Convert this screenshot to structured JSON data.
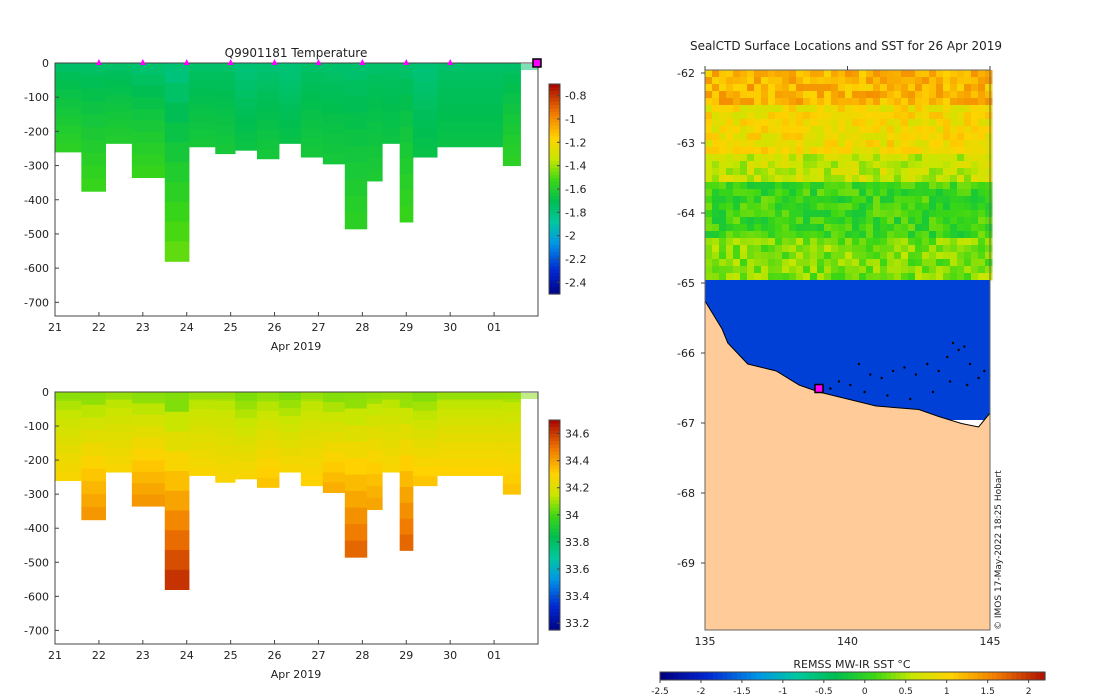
{
  "chart_data": [
    {
      "type": "heatmap",
      "title": "Q9901181  Temperature",
      "xlabel": "Apr 2019",
      "x_ticks": [
        "21",
        "22",
        "23",
        "24",
        "25",
        "26",
        "27",
        "28",
        "29",
        "30",
        "01"
      ],
      "y_ticks": [
        0,
        -100,
        -200,
        -300,
        -400,
        -500,
        -600,
        -700
      ],
      "ylim": [
        -740,
        0
      ],
      "xlim": [
        21,
        32
      ],
      "surfacing_days": [
        22,
        23,
        24,
        25,
        26,
        27,
        28,
        29,
        30
      ],
      "colorbar_ticks": [
        "-0.8",
        "-1",
        "-1.2",
        "-1.4",
        "-1.6",
        "-1.8",
        "-2",
        "-2.2",
        "-2.4"
      ],
      "colorbar_range": [
        -2.5,
        -0.7
      ],
      "profiles": [
        {
          "x0": 21.0,
          "x1": 21.6,
          "bottom": -260,
          "surface": -1.75,
          "deep": -1.55
        },
        {
          "x0": 21.6,
          "x1": 22.15,
          "bottom": -375,
          "surface": -1.75,
          "deep": -1.52
        },
        {
          "x0": 22.15,
          "x1": 22.75,
          "bottom": -235,
          "surface": -1.75,
          "deep": -1.58
        },
        {
          "x0": 22.75,
          "x1": 23.5,
          "bottom": -335,
          "surface": -1.78,
          "deep": -1.52
        },
        {
          "x0": 23.5,
          "x1": 24.05,
          "bottom": -580,
          "surface": -1.82,
          "deep": -1.45
        },
        {
          "x0": 24.05,
          "x1": 24.65,
          "bottom": -245,
          "surface": -1.75,
          "deep": -1.62
        },
        {
          "x0": 24.65,
          "x1": 25.1,
          "bottom": -265,
          "surface": -1.75,
          "deep": -1.62
        },
        {
          "x0": 25.1,
          "x1": 25.6,
          "bottom": -255,
          "surface": -1.8,
          "deep": -1.65
        },
        {
          "x0": 25.6,
          "x1": 26.1,
          "bottom": -280,
          "surface": -1.78,
          "deep": -1.62
        },
        {
          "x0": 26.1,
          "x1": 26.6,
          "bottom": -235,
          "surface": -1.8,
          "deep": -1.66
        },
        {
          "x0": 26.6,
          "x1": 27.1,
          "bottom": -275,
          "surface": -1.75,
          "deep": -1.62
        },
        {
          "x0": 27.1,
          "x1": 27.6,
          "bottom": -295,
          "surface": -1.76,
          "deep": -1.62
        },
        {
          "x0": 27.6,
          "x1": 28.1,
          "bottom": -485,
          "surface": -1.77,
          "deep": -1.55
        },
        {
          "x0": 28.1,
          "x1": 28.45,
          "bottom": -345,
          "surface": -1.75,
          "deep": -1.6
        },
        {
          "x0": 28.45,
          "x1": 28.85,
          "bottom": -235,
          "surface": -1.75,
          "deep": -1.65
        },
        {
          "x0": 28.85,
          "x1": 29.15,
          "bottom": -465,
          "surface": -1.76,
          "deep": -1.52
        },
        {
          "x0": 29.15,
          "x1": 29.7,
          "bottom": -275,
          "surface": -1.8,
          "deep": -1.66
        },
        {
          "x0": 29.7,
          "x1": 31.2,
          "bottom": -245,
          "surface": -1.75,
          "deep": -1.66
        },
        {
          "x0": 31.2,
          "x1": 31.6,
          "bottom": -300,
          "surface": -1.75,
          "deep": -1.55
        }
      ]
    },
    {
      "type": "heatmap",
      "title": "",
      "xlabel": "Apr 2019",
      "x_ticks": [
        "21",
        "22",
        "23",
        "24",
        "25",
        "26",
        "27",
        "28",
        "29",
        "30",
        "01"
      ],
      "y_ticks": [
        0,
        -100,
        -200,
        -300,
        -400,
        -500,
        -600,
        -700
      ],
      "ylim": [
        -740,
        0
      ],
      "xlim": [
        21,
        32
      ],
      "colorbar_ticks": [
        "34.6",
        "34.4",
        "34.2",
        "34",
        "33.8",
        "33.6",
        "33.4",
        "33.2"
      ],
      "colorbar_range": [
        33.15,
        34.7
      ],
      "profiles": [
        {
          "x0": 21.0,
          "x1": 21.6,
          "bottom": -260,
          "surface": 34.08,
          "deep": 34.3
        },
        {
          "x0": 21.6,
          "x1": 22.15,
          "bottom": -375,
          "surface": 34.06,
          "deep": 34.45
        },
        {
          "x0": 22.15,
          "x1": 22.75,
          "bottom": -235,
          "surface": 34.1,
          "deep": 34.3
        },
        {
          "x0": 22.75,
          "x1": 23.5,
          "bottom": -335,
          "surface": 34.06,
          "deep": 34.45
        },
        {
          "x0": 23.5,
          "x1": 24.05,
          "bottom": -580,
          "surface": 34.02,
          "deep": 34.65
        },
        {
          "x0": 24.05,
          "x1": 24.65,
          "bottom": -245,
          "surface": 34.1,
          "deep": 34.3
        },
        {
          "x0": 24.65,
          "x1": 25.1,
          "bottom": -265,
          "surface": 34.1,
          "deep": 34.3
        },
        {
          "x0": 25.1,
          "x1": 25.6,
          "bottom": -255,
          "surface": 34.05,
          "deep": 34.3
        },
        {
          "x0": 25.6,
          "x1": 26.1,
          "bottom": -280,
          "surface": 34.08,
          "deep": 34.35
        },
        {
          "x0": 26.1,
          "x1": 26.6,
          "bottom": -235,
          "surface": 34.05,
          "deep": 34.3
        },
        {
          "x0": 26.6,
          "x1": 27.1,
          "bottom": -275,
          "surface": 34.1,
          "deep": 34.32
        },
        {
          "x0": 27.1,
          "x1": 27.6,
          "bottom": -295,
          "surface": 34.05,
          "deep": 34.4
        },
        {
          "x0": 27.6,
          "x1": 28.1,
          "bottom": -485,
          "surface": 34.05,
          "deep": 34.55
        },
        {
          "x0": 28.1,
          "x1": 28.45,
          "bottom": -345,
          "surface": 34.08,
          "deep": 34.42
        },
        {
          "x0": 28.45,
          "x1": 28.85,
          "bottom": -235,
          "surface": 34.1,
          "deep": 34.3
        },
        {
          "x0": 28.85,
          "x1": 29.15,
          "bottom": -465,
          "surface": 34.06,
          "deep": 34.55
        },
        {
          "x0": 29.15,
          "x1": 29.7,
          "bottom": -275,
          "surface": 34.05,
          "deep": 34.35
        },
        {
          "x0": 29.7,
          "x1": 31.2,
          "bottom": -245,
          "surface": 34.1,
          "deep": 34.32
        },
        {
          "x0": 31.2,
          "x1": 31.6,
          "bottom": -300,
          "surface": 34.1,
          "deep": 34.35
        }
      ]
    },
    {
      "type": "heatmap",
      "title": "SealCTD Surface Locations and SST for 26 Apr 2019",
      "x_ticks": [
        "135",
        "140",
        "145"
      ],
      "y_ticks": [
        "-62",
        "-63",
        "-64",
        "-65",
        "-66",
        "-67",
        "-68",
        "-69"
      ],
      "xlim": [
        135,
        145
      ],
      "ylim": [
        -70,
        -62
      ],
      "colorbar_label": "REMSS MW-IR SST °C",
      "colorbar_ticks": [
        "-2.5",
        "-2",
        "-1.5",
        "-1",
        "-0.5",
        "0",
        "0.5",
        "1",
        "1.5",
        "2"
      ],
      "colorbar_range": [
        -2.5,
        2.2
      ],
      "sst_bands": [
        {
          "lat_top": -62.0,
          "lat_bottom": -62.5,
          "sst": 1.2
        },
        {
          "lat_top": -62.5,
          "lat_bottom": -63.2,
          "sst": 0.9
        },
        {
          "lat_top": -63.2,
          "lat_bottom": -63.6,
          "sst": 0.55
        },
        {
          "lat_top": -63.6,
          "lat_bottom": -64.4,
          "sst": 0.05
        },
        {
          "lat_top": -64.4,
          "lat_bottom": -65.0,
          "sst": 0.3
        }
      ],
      "ice_sst": -1.8,
      "land_color": "#ffcc99",
      "track_points": [
        {
          "lon": 143.7,
          "lat": -65.9
        },
        {
          "lon": 143.9,
          "lat": -66.0
        },
        {
          "lon": 144.1,
          "lat": -65.95
        },
        {
          "lon": 143.5,
          "lat": -66.1
        },
        {
          "lon": 144.3,
          "lat": -66.2
        },
        {
          "lon": 143.2,
          "lat": -66.3
        },
        {
          "lon": 142.8,
          "lat": -66.2
        },
        {
          "lon": 142.4,
          "lat": -66.35
        },
        {
          "lon": 142.0,
          "lat": -66.25
        },
        {
          "lon": 141.6,
          "lat": -66.3
        },
        {
          "lon": 141.2,
          "lat": -66.4
        },
        {
          "lon": 140.8,
          "lat": -66.35
        },
        {
          "lon": 140.4,
          "lat": -66.2
        },
        {
          "lon": 140.1,
          "lat": -66.5
        },
        {
          "lon": 139.7,
          "lat": -66.45
        },
        {
          "lon": 139.4,
          "lat": -66.55
        },
        {
          "lon": 144.6,
          "lat": -66.4
        },
        {
          "lon": 144.8,
          "lat": -66.3
        },
        {
          "lon": 143.0,
          "lat": -66.6
        },
        {
          "lon": 142.2,
          "lat": -66.7
        },
        {
          "lon": 141.4,
          "lat": -66.65
        },
        {
          "lon": 144.2,
          "lat": -66.5
        },
        {
          "lon": 143.6,
          "lat": -66.45
        },
        {
          "lon": 140.6,
          "lat": -66.6
        }
      ],
      "current_location": {
        "lon": 139.0,
        "lat": -66.55
      },
      "credit": "© IMOS 17-May-2022 18:25 Hobart"
    }
  ],
  "colors": {
    "surface_marker": "#ff00ff",
    "track": "#000000"
  }
}
